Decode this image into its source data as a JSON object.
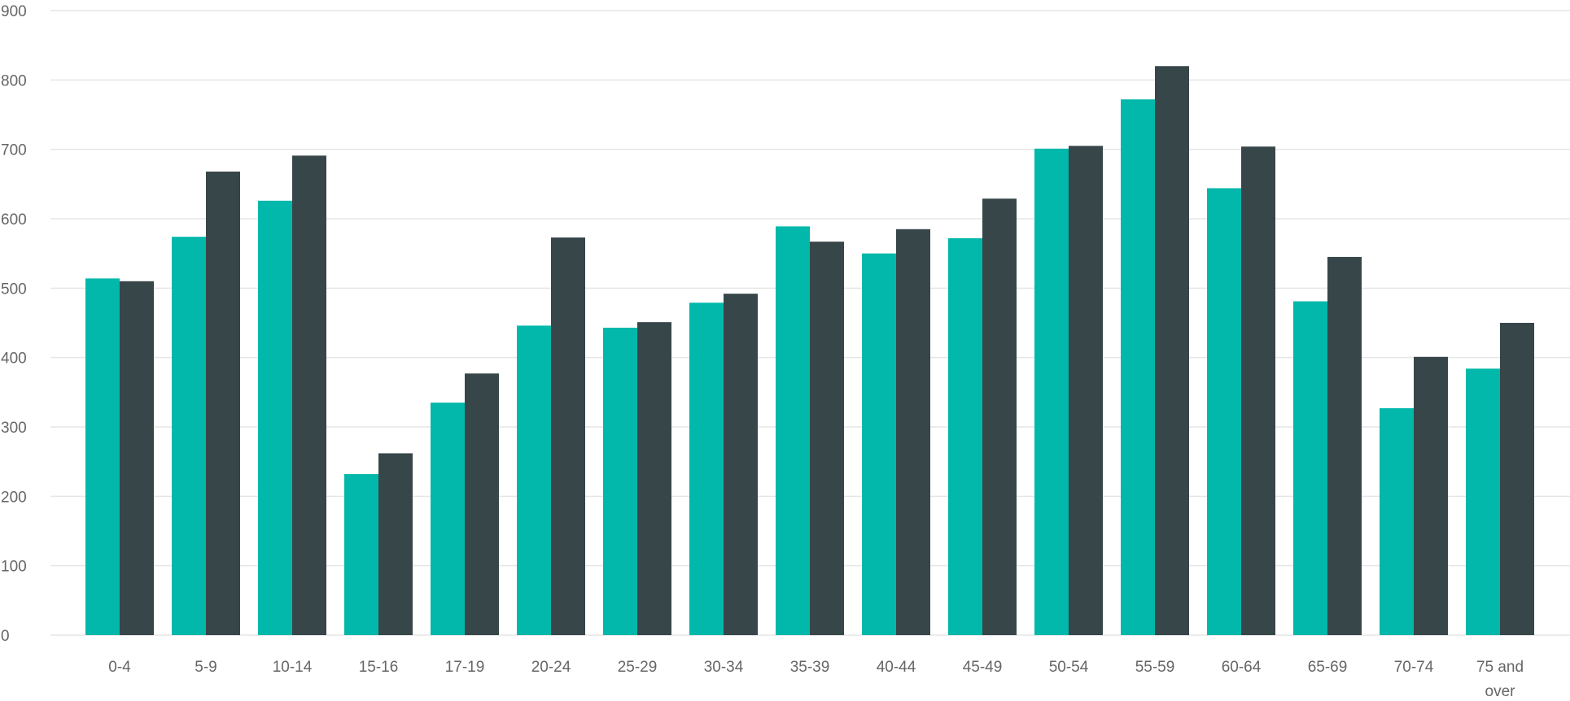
{
  "chart_data": {
    "type": "bar",
    "categories": [
      "0-4",
      "5-9",
      "10-14",
      "15-16",
      "17-19",
      "20-24",
      "25-29",
      "30-34",
      "35-39",
      "40-44",
      "45-49",
      "50-54",
      "55-59",
      "60-64",
      "65-69",
      "70-74",
      "75 and over"
    ],
    "series": [
      {
        "color": "#01b8aa",
        "values": [
          514,
          574,
          626,
          232,
          335,
          446,
          443,
          479,
          589,
          550,
          572,
          701,
          772,
          644,
          481,
          327,
          384
        ]
      },
      {
        "color": "#374649",
        "values": [
          510,
          668,
          691,
          262,
          377,
          573,
          451,
          492,
          567,
          585,
          629,
          705,
          820,
          704,
          545,
          401,
          450
        ]
      }
    ],
    "ylim": [
      0,
      900
    ],
    "yticks": [
      0,
      100,
      200,
      300,
      400,
      500,
      600,
      700,
      800,
      900
    ],
    "grid": true,
    "legend": "none",
    "title": "",
    "xlabel": "",
    "ylabel": ""
  }
}
